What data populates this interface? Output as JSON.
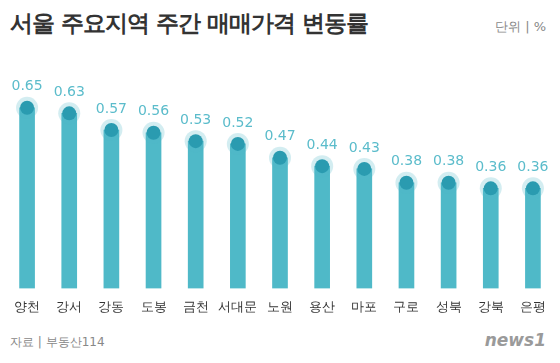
{
  "chart_data": {
    "type": "bar",
    "title": "서울 주요지역 주간 매매가격 변동률",
    "unit_label": "단위 | %",
    "source": "자료 | 부동산114",
    "credit": "news1",
    "categories": [
      "양천",
      "강서",
      "강동",
      "도봉",
      "금천",
      "서대문",
      "노원",
      "용산",
      "마포",
      "구로",
      "성북",
      "강북",
      "은평"
    ],
    "values": [
      0.65,
      0.63,
      0.57,
      0.56,
      0.53,
      0.52,
      0.47,
      0.44,
      0.43,
      0.38,
      0.38,
      0.36,
      0.36
    ],
    "color": "#4fb9c8",
    "ylim": [
      0,
      0.75
    ],
    "yticks": [
      0,
      0.25,
      0.5,
      0.75
    ],
    "grid": false,
    "data_labels": true,
    "tick_labels": "x"
  }
}
